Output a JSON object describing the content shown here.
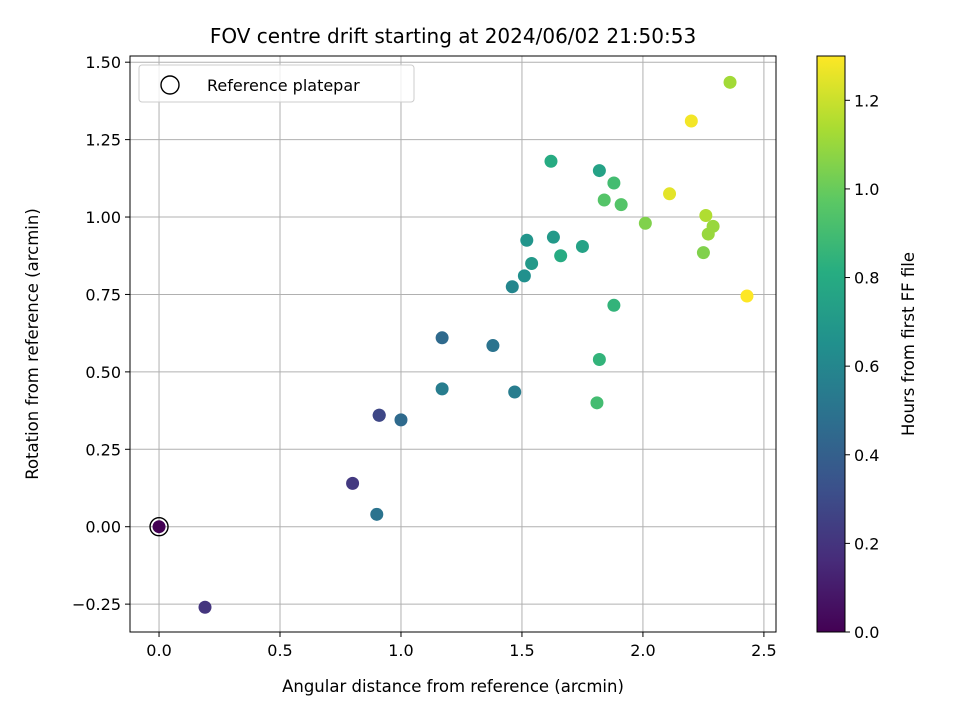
{
  "chart_data": {
    "type": "scatter",
    "title": "FOV centre drift starting at 2024/06/02 21:50:53",
    "xlabel": "Angular distance from reference (arcmin)",
    "ylabel": "Rotation from reference (arcmin)",
    "xlim": [
      -0.12,
      2.55
    ],
    "ylim": [
      -0.34,
      1.52
    ],
    "xticks": [
      0.0,
      0.5,
      1.0,
      1.5,
      2.0,
      2.5
    ],
    "xtick_labels": [
      "0.0",
      "0.5",
      "1.0",
      "1.5",
      "2.0",
      "2.5"
    ],
    "yticks": [
      -0.25,
      0.0,
      0.25,
      0.5,
      0.75,
      1.0,
      1.25,
      1.5
    ],
    "ytick_labels": [
      "−0.25",
      "0.00",
      "0.25",
      "0.50",
      "0.75",
      "1.00",
      "1.25",
      "1.50"
    ],
    "grid": true,
    "legend": {
      "placement": "top-left",
      "entries": [
        {
          "label": "Reference platepar",
          "marker": "open-circle"
        }
      ]
    },
    "reference_point": {
      "x": 0.0,
      "y": 0.0
    },
    "colorbar": {
      "label": "Hours from first FF file",
      "colormap": "viridis",
      "range": [
        0.0,
        1.3
      ],
      "ticks": [
        0.0,
        0.2,
        0.4,
        0.6,
        0.8,
        1.0,
        1.2
      ],
      "tick_labels": [
        "0.0",
        "0.2",
        "0.4",
        "0.6",
        "0.8",
        "1.0",
        "1.2"
      ]
    },
    "points": [
      {
        "x": 0.0,
        "y": 0.0,
        "c": 0.0
      },
      {
        "x": 0.19,
        "y": -0.26,
        "c": 0.2
      },
      {
        "x": 0.8,
        "y": 0.14,
        "c": 0.22
      },
      {
        "x": 0.91,
        "y": 0.36,
        "c": 0.25
      },
      {
        "x": 0.91,
        "y": 0.36,
        "c": 0.28
      },
      {
        "x": 0.9,
        "y": 0.04,
        "c": 0.5
      },
      {
        "x": 1.0,
        "y": 0.345,
        "c": 0.45
      },
      {
        "x": 1.17,
        "y": 0.61,
        "c": 0.45
      },
      {
        "x": 1.17,
        "y": 0.445,
        "c": 0.55
      },
      {
        "x": 1.38,
        "y": 0.585,
        "c": 0.5
      },
      {
        "x": 1.47,
        "y": 0.435,
        "c": 0.55
      },
      {
        "x": 1.46,
        "y": 0.775,
        "c": 0.6
      },
      {
        "x": 1.51,
        "y": 0.81,
        "c": 0.65
      },
      {
        "x": 1.52,
        "y": 0.925,
        "c": 0.68
      },
      {
        "x": 1.54,
        "y": 0.85,
        "c": 0.7
      },
      {
        "x": 1.63,
        "y": 0.935,
        "c": 0.7
      },
      {
        "x": 1.66,
        "y": 0.875,
        "c": 0.8
      },
      {
        "x": 1.62,
        "y": 1.18,
        "c": 0.8
      },
      {
        "x": 1.75,
        "y": 0.905,
        "c": 0.75
      },
      {
        "x": 1.82,
        "y": 1.15,
        "c": 0.75
      },
      {
        "x": 1.82,
        "y": 0.54,
        "c": 0.85
      },
      {
        "x": 1.81,
        "y": 0.4,
        "c": 0.9
      },
      {
        "x": 1.88,
        "y": 0.715,
        "c": 0.85
      },
      {
        "x": 1.84,
        "y": 1.055,
        "c": 0.95
      },
      {
        "x": 1.88,
        "y": 1.11,
        "c": 0.9
      },
      {
        "x": 1.91,
        "y": 1.04,
        "c": 0.95
      },
      {
        "x": 2.01,
        "y": 0.98,
        "c": 1.05
      },
      {
        "x": 2.11,
        "y": 1.075,
        "c": 1.25
      },
      {
        "x": 2.2,
        "y": 1.31,
        "c": 1.28
      },
      {
        "x": 2.26,
        "y": 1.005,
        "c": 1.15
      },
      {
        "x": 2.25,
        "y": 0.885,
        "c": 1.05
      },
      {
        "x": 2.27,
        "y": 0.945,
        "c": 1.1
      },
      {
        "x": 2.29,
        "y": 0.97,
        "c": 1.1
      },
      {
        "x": 2.36,
        "y": 1.435,
        "c": 1.12
      },
      {
        "x": 2.43,
        "y": 0.745,
        "c": 1.3
      }
    ]
  }
}
